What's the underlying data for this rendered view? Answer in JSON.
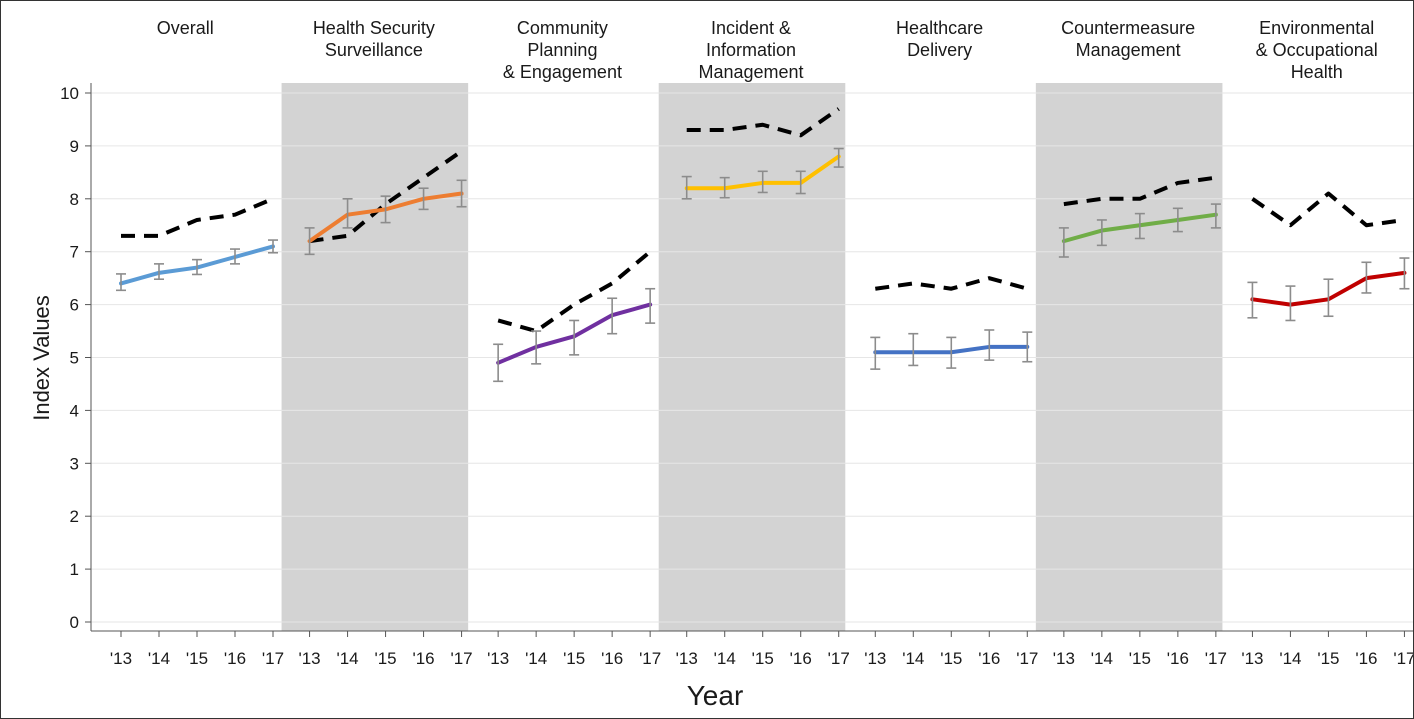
{
  "chart_data": {
    "type": "line",
    "xlabel": "Year",
    "ylabel": "Index Values",
    "ylim": [
      0,
      10
    ],
    "y_ticks": [
      "0",
      "1",
      "2",
      "3",
      "4",
      "5",
      "6",
      "7",
      "8",
      "9",
      "10"
    ],
    "x_ticks": [
      "'13",
      "'14",
      "'15",
      "'16",
      "'17"
    ],
    "grid": "horizontal",
    "panels": [
      {
        "title_lines": [
          "Overall"
        ],
        "shaded": false,
        "color": "#5b9bd5",
        "values": [
          6.4,
          6.6,
          6.7,
          6.9,
          7.1
        ],
        "err_low": [
          6.27,
          6.48,
          6.57,
          6.77,
          6.98
        ],
        "err_high": [
          6.58,
          6.77,
          6.85,
          7.05,
          7.22
        ],
        "dashed": [
          7.3,
          7.3,
          7.6,
          7.7,
          8.0
        ]
      },
      {
        "title_lines": [
          "Health Security",
          "Surveillance"
        ],
        "shaded": true,
        "color": "#ed7d31",
        "values": [
          7.2,
          7.7,
          7.8,
          8.0,
          8.1
        ],
        "err_low": [
          6.95,
          7.45,
          7.55,
          7.8,
          7.85
        ],
        "err_high": [
          7.45,
          8.0,
          8.05,
          8.2,
          8.35
        ],
        "dashed": [
          7.2,
          7.3,
          7.9,
          8.4,
          8.9
        ]
      },
      {
        "title_lines": [
          "Community",
          "Planning",
          "& Engagement"
        ],
        "shaded": false,
        "color": "#7030a0",
        "values": [
          4.9,
          5.2,
          5.4,
          5.8,
          6.0
        ],
        "err_low": [
          4.55,
          4.88,
          5.05,
          5.45,
          5.65
        ],
        "err_high": [
          5.25,
          5.5,
          5.7,
          6.12,
          6.3
        ],
        "dashed": [
          5.7,
          5.5,
          6.0,
          6.4,
          7.0
        ]
      },
      {
        "title_lines": [
          "Incident &",
          "Information",
          "Management"
        ],
        "shaded": true,
        "color": "#ffc000",
        "values": [
          8.2,
          8.2,
          8.3,
          8.3,
          8.8
        ],
        "err_low": [
          8.0,
          8.02,
          8.12,
          8.1,
          8.6
        ],
        "err_high": [
          8.42,
          8.4,
          8.52,
          8.52,
          8.95
        ],
        "dashed": [
          9.3,
          9.3,
          9.4,
          9.2,
          9.7
        ]
      },
      {
        "title_lines": [
          "Healthcare",
          "Delivery"
        ],
        "shaded": false,
        "color": "#4472c4",
        "values": [
          5.1,
          5.1,
          5.1,
          5.2,
          5.2
        ],
        "err_low": [
          4.78,
          4.85,
          4.8,
          4.95,
          4.92
        ],
        "err_high": [
          5.38,
          5.45,
          5.38,
          5.52,
          5.48
        ],
        "dashed": [
          6.3,
          6.4,
          6.3,
          6.5,
          6.3
        ]
      },
      {
        "title_lines": [
          "Countermeasure",
          "Management"
        ],
        "shaded": true,
        "color": "#70ad47",
        "values": [
          7.2,
          7.4,
          7.5,
          7.6,
          7.7
        ],
        "err_low": [
          6.9,
          7.12,
          7.25,
          7.38,
          7.45
        ],
        "err_high": [
          7.45,
          7.6,
          7.72,
          7.82,
          7.9
        ],
        "dashed": [
          7.9,
          8.0,
          8.0,
          8.3,
          8.4
        ]
      },
      {
        "title_lines": [
          "Environmental",
          "& Occupational",
          "Health"
        ],
        "shaded": false,
        "color": "#c00000",
        "values": [
          6.1,
          6.0,
          6.1,
          6.5,
          6.6
        ],
        "err_low": [
          5.75,
          5.7,
          5.78,
          6.22,
          6.3
        ],
        "err_high": [
          6.42,
          6.35,
          6.48,
          6.8,
          6.88
        ],
        "dashed": [
          8.0,
          7.5,
          8.1,
          7.5,
          7.6
        ]
      }
    ]
  }
}
